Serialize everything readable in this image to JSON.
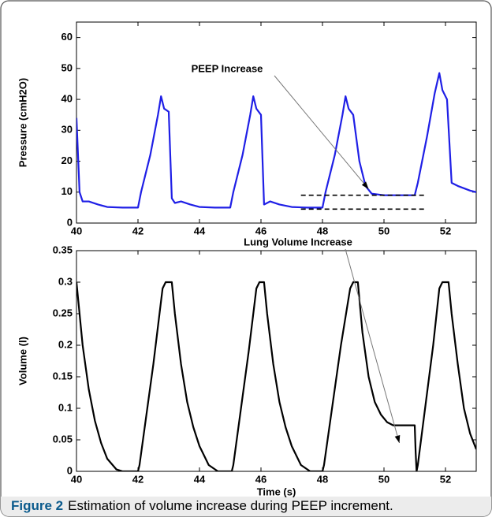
{
  "chart_data": [
    {
      "type": "line",
      "ylabel": "Pressure (cmH2O)",
      "x": [
        40.0,
        40.1,
        40.2,
        40.4,
        40.7,
        41.0,
        41.5,
        42.0,
        42.1,
        42.4,
        42.65,
        42.75,
        42.85,
        43.0,
        43.1,
        43.2,
        43.4,
        43.7,
        44.0,
        44.5,
        45.0,
        45.1,
        45.4,
        45.65,
        45.75,
        45.85,
        46.0,
        46.1,
        46.3,
        46.6,
        47.0,
        47.5,
        48.0,
        48.1,
        48.4,
        48.65,
        48.75,
        48.85,
        49.0,
        49.2,
        49.4,
        49.6,
        50.0,
        50.5,
        51.0,
        51.1,
        51.4,
        51.65,
        51.8,
        51.9,
        52.05,
        52.2,
        52.4,
        52.8,
        53.0
      ],
      "values": [
        34,
        10,
        7,
        7,
        6,
        5.2,
        5,
        5,
        10,
        22,
        35,
        41,
        37,
        36,
        8,
        6.5,
        7,
        6,
        5.2,
        5,
        5,
        10,
        22,
        35,
        41,
        37,
        35,
        6,
        7,
        6,
        5.2,
        5,
        5,
        10,
        22,
        35,
        41,
        37,
        35,
        20,
        12,
        9.5,
        9,
        9,
        9,
        13,
        28,
        42,
        48.5,
        43,
        40,
        13,
        12,
        10.5,
        10
      ],
      "color": "#1f1fe6",
      "xlim": [
        40,
        53
      ],
      "xticks": [
        40,
        42,
        44,
        46,
        48,
        50,
        52
      ],
      "ylim": [
        0,
        65
      ],
      "yticks": [
        0,
        10,
        20,
        30,
        40,
        50,
        60
      ],
      "reference_lines": [
        {
          "y": 9,
          "x": [
            47.3,
            51.3
          ]
        },
        {
          "y": 4.5,
          "x": [
            47.3,
            51.3
          ]
        }
      ],
      "annotations": [
        {
          "text": "PEEP Increase",
          "x": 49.5,
          "y": 11
        }
      ]
    },
    {
      "type": "line",
      "ylabel": "Volume (l)",
      "xlabel": "Time (s)",
      "x": [
        40,
        40.2,
        40.4,
        40.6,
        40.8,
        41.0,
        41.3,
        41.5,
        42.0,
        42.05,
        42.5,
        42.8,
        42.9,
        43.1,
        43.2,
        43.4,
        43.6,
        43.8,
        44.0,
        44.3,
        44.6,
        45.05,
        45.1,
        45.6,
        45.85,
        45.95,
        46.1,
        46.2,
        46.4,
        46.6,
        46.8,
        47.0,
        47.3,
        47.6,
        48.0,
        48.05,
        48.6,
        48.9,
        49.0,
        49.15,
        49.3,
        49.5,
        49.7,
        49.9,
        50.1,
        50.3,
        51.0,
        51.03,
        51.06,
        51.1,
        51.6,
        51.8,
        51.9,
        52.1,
        52.2,
        52.4,
        52.6,
        52.8,
        53.0
      ],
      "values": [
        0.3,
        0.2,
        0.13,
        0.08,
        0.045,
        0.02,
        0.003,
        0,
        0,
        0.01,
        0.17,
        0.29,
        0.3,
        0.3,
        0.25,
        0.17,
        0.11,
        0.07,
        0.04,
        0.01,
        0,
        0,
        0.01,
        0.19,
        0.29,
        0.3,
        0.3,
        0.25,
        0.17,
        0.11,
        0.07,
        0.04,
        0.01,
        0,
        0,
        0.01,
        0.2,
        0.29,
        0.3,
        0.3,
        0.22,
        0.15,
        0.11,
        0.09,
        0.078,
        0.073,
        0.073,
        0.03,
        0,
        0.01,
        0.2,
        0.29,
        0.3,
        0.3,
        0.25,
        0.17,
        0.1,
        0.06,
        0.035
      ],
      "color": "#000000",
      "xlim": [
        40,
        53
      ],
      "xticks": [
        40,
        42,
        44,
        46,
        48,
        50,
        52
      ],
      "ylim": [
        0,
        0.35
      ],
      "yticks": [
        0,
        0.05,
        0.1,
        0.15,
        0.2,
        0.25,
        0.3,
        0.35
      ],
      "annotations": [
        {
          "text": "Lung Volume Increase",
          "x": 50.5,
          "y": 0.045
        }
      ]
    }
  ],
  "caption": {
    "label": "Figure 2",
    "text": "Estimation of volume increase during PEEP increment."
  }
}
